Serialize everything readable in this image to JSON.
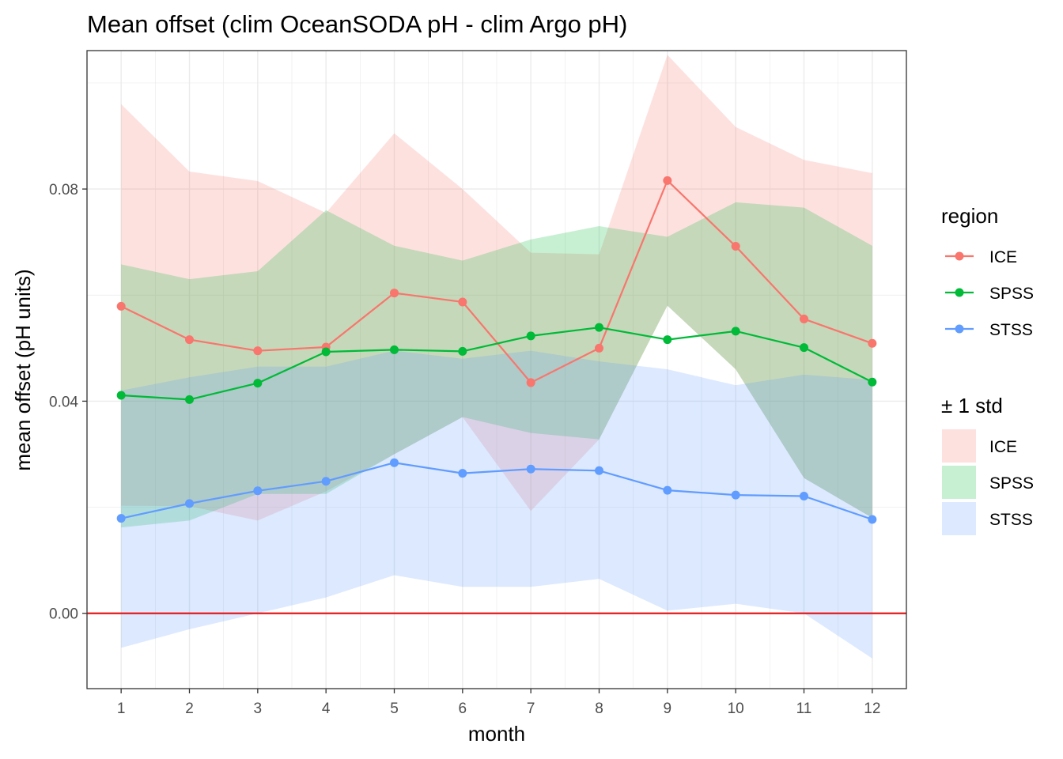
{
  "chart_data": {
    "type": "line",
    "title": "Mean offset (clim OceanSODA pH - clim Argo pH)",
    "xlabel": "month",
    "ylabel": "mean offset (pH units)",
    "x": [
      1,
      2,
      3,
      4,
      5,
      6,
      7,
      8,
      9,
      10,
      11,
      12
    ],
    "x_tick_labels": [
      "1",
      "2",
      "3",
      "4",
      "5",
      "6",
      "7",
      "8",
      "9",
      "10",
      "11",
      "12"
    ],
    "xlim": [
      0.5,
      12.5
    ],
    "ylim": [
      -0.0142,
      0.1061
    ],
    "y_ticks": [
      0.0,
      0.04,
      0.08
    ],
    "y_tick_labels": [
      "0.00",
      "0.04",
      "0.08"
    ],
    "reference_line": {
      "y": 0.0,
      "color": "#e31a1c"
    },
    "grid": true,
    "legend_position": "right",
    "legend": {
      "line_title": "region",
      "band_title": "± 1 std"
    },
    "series": [
      {
        "name": "ICE",
        "color": "#F8766D",
        "values": [
          0.0579,
          0.0516,
          0.0495,
          0.0502,
          0.0604,
          0.0587,
          0.0435,
          0.05,
          0.0816,
          0.0692,
          0.0555,
          0.0509
        ],
        "lower": [
          0.0203,
          0.0202,
          0.0175,
          0.023,
          0.03,
          0.037,
          0.0193,
          0.0328,
          0.058,
          0.046,
          0.0255,
          0.018
        ],
        "upper": [
          0.096,
          0.0833,
          0.0815,
          0.0755,
          0.0905,
          0.08,
          0.068,
          0.0677,
          0.1053,
          0.0917,
          0.0855,
          0.083
        ]
      },
      {
        "name": "SPSS",
        "color": "#00BA38",
        "values": [
          0.0411,
          0.0403,
          0.0434,
          0.0493,
          0.0497,
          0.0494,
          0.0523,
          0.0539,
          0.0516,
          0.0532,
          0.0501,
          0.0436
        ],
        "lower": [
          0.0162,
          0.0175,
          0.0225,
          0.0225,
          0.03,
          0.037,
          0.034,
          0.0328,
          0.058,
          0.046,
          0.0255,
          0.018
        ],
        "upper": [
          0.0658,
          0.063,
          0.0645,
          0.076,
          0.0693,
          0.0665,
          0.0705,
          0.073,
          0.071,
          0.0775,
          0.0765,
          0.0693
        ]
      },
      {
        "name": "STSS",
        "color": "#619CFF",
        "values": [
          0.0179,
          0.0207,
          0.0231,
          0.0249,
          0.0284,
          0.0264,
          0.0272,
          0.0269,
          0.0232,
          0.0223,
          0.0221,
          0.0177
        ],
        "lower": [
          -0.0065,
          -0.003,
          0.0,
          0.003,
          0.0072,
          0.005,
          0.005,
          0.0065,
          0.0005,
          0.0018,
          0.0,
          -0.0085
        ],
        "upper": [
          0.042,
          0.0445,
          0.0465,
          0.0465,
          0.0495,
          0.048,
          0.0495,
          0.0475,
          0.046,
          0.043,
          0.045,
          0.044
        ]
      }
    ]
  }
}
